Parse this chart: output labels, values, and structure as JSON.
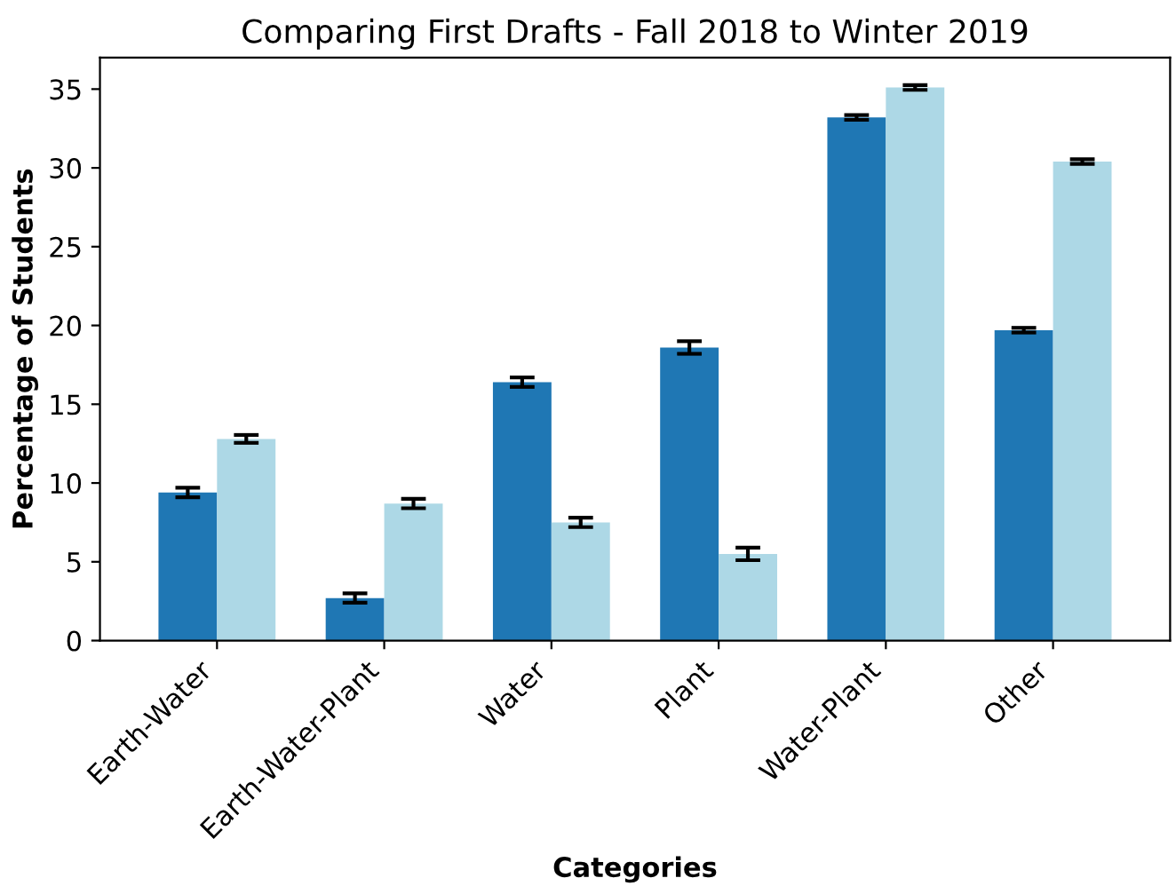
{
  "chart_data": {
    "type": "bar",
    "title": "Comparing First Drafts - Fall 2018 to Winter 2019",
    "xlabel": "Categories",
    "ylabel": "Percentage of Students",
    "categories": [
      "Earth-Water",
      "Earth-Water-Plant",
      "Water",
      "Plant",
      "Water-Plant",
      "Other"
    ],
    "series": [
      {
        "color": "#1f77b4",
        "values": [
          9.4,
          2.7,
          16.4,
          18.6,
          33.2,
          19.7
        ],
        "errors": [
          0.3,
          0.3,
          0.3,
          0.4,
          0.15,
          0.15
        ]
      },
      {
        "color": "#add8e6",
        "values": [
          12.8,
          8.7,
          7.5,
          5.5,
          35.1,
          30.4
        ],
        "errors": [
          0.25,
          0.3,
          0.3,
          0.4,
          0.15,
          0.15
        ]
      }
    ],
    "ylim": [
      0,
      37
    ],
    "yticks": [
      0,
      5,
      10,
      15,
      20,
      25,
      30,
      35
    ],
    "grid": false,
    "legend": false
  }
}
